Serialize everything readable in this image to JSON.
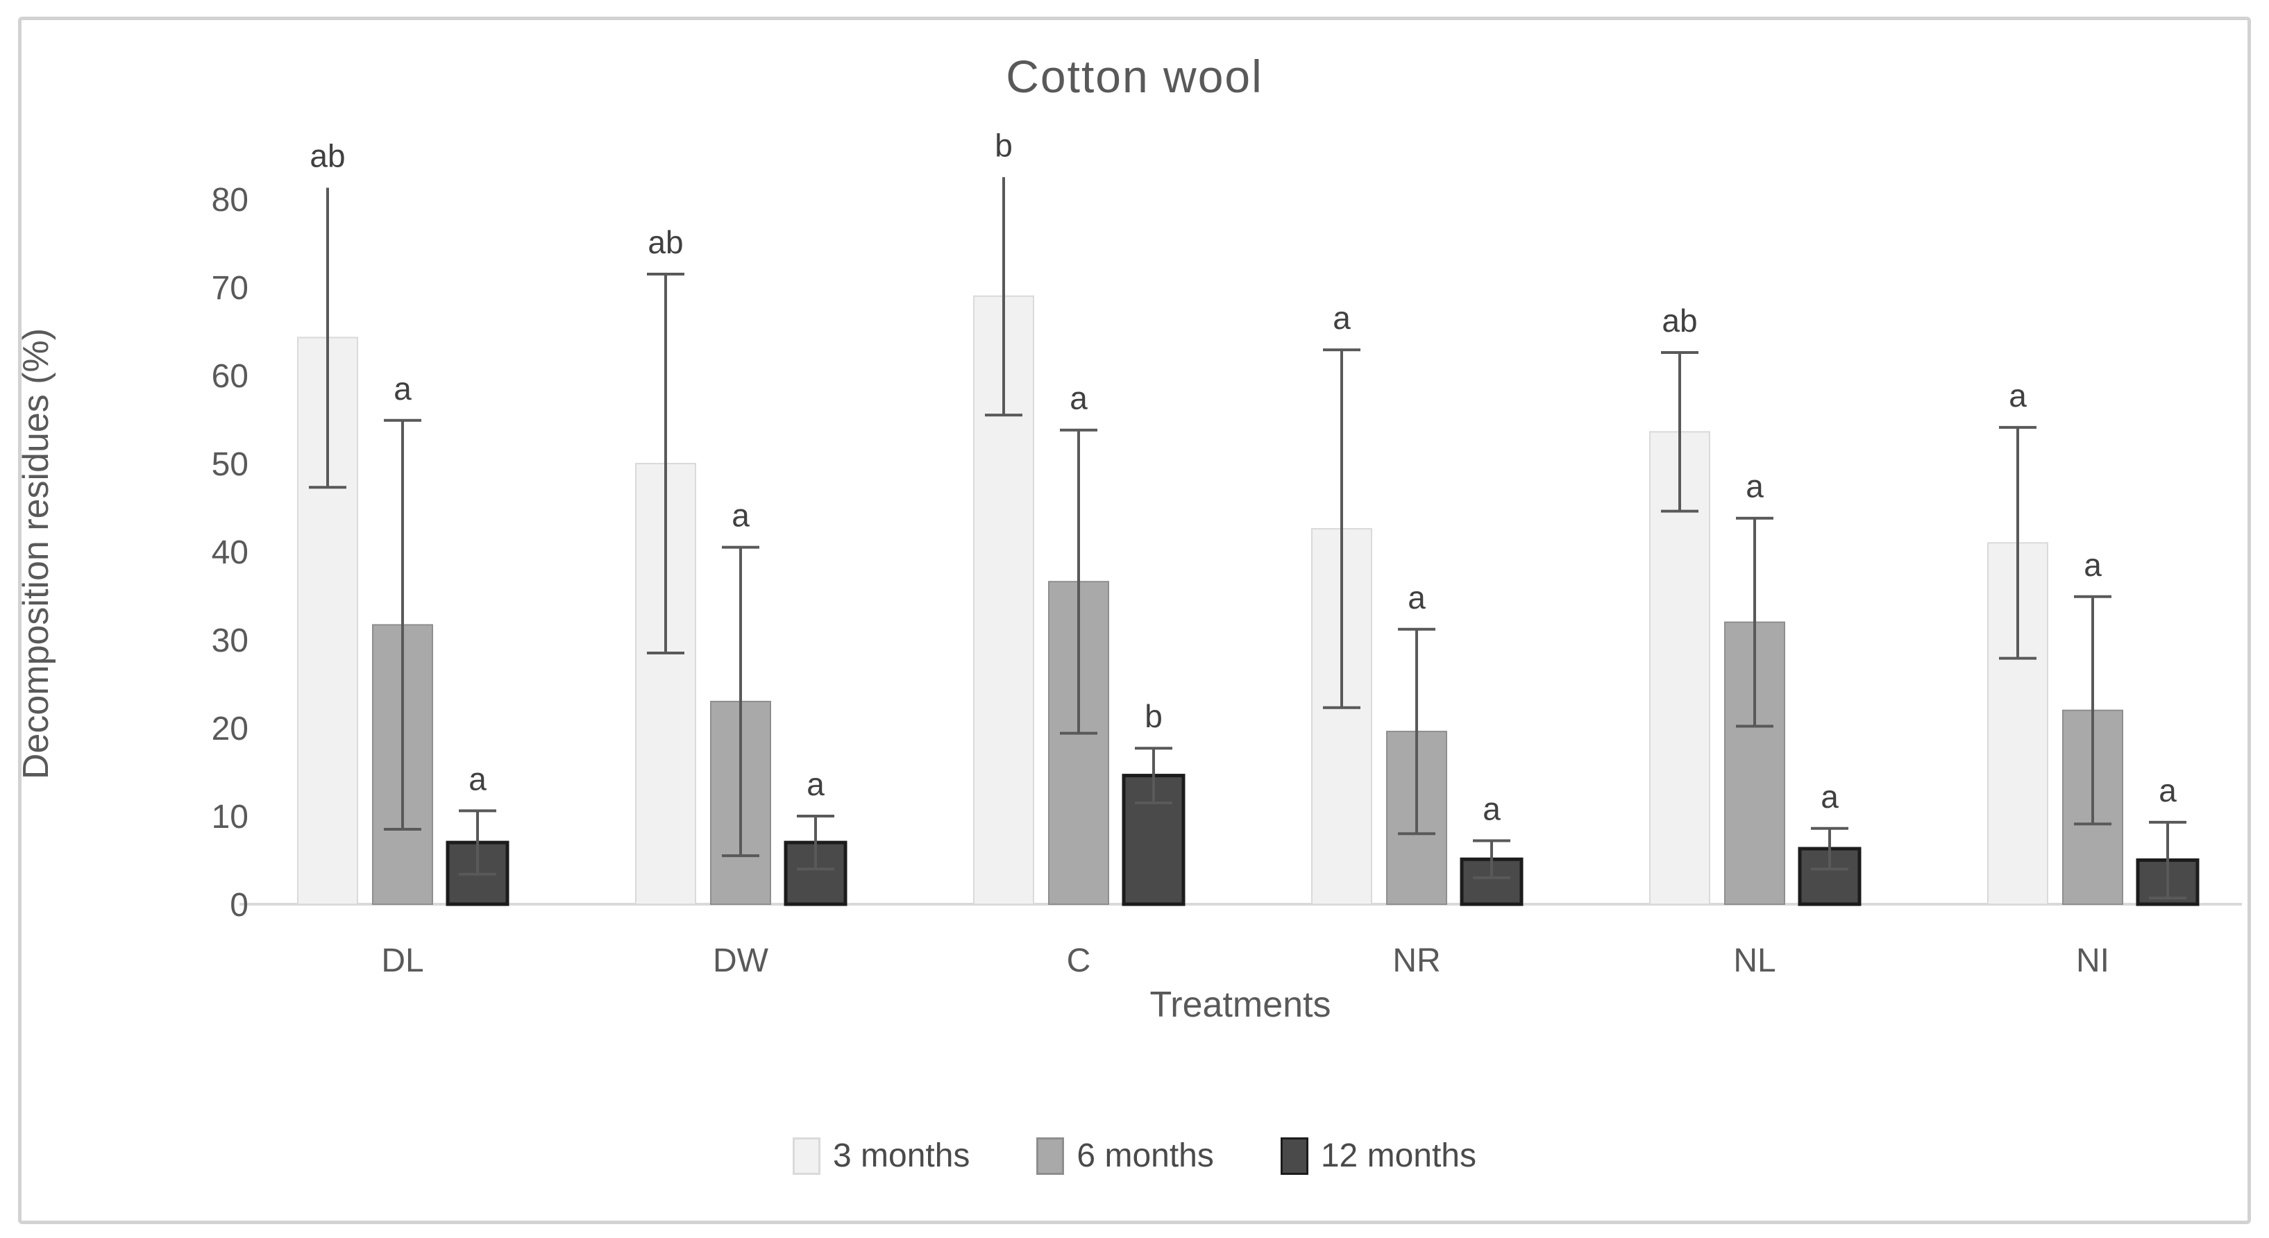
{
  "chart_data": {
    "type": "bar",
    "title": "Cotton wool",
    "xlabel": "Treatments",
    "ylabel": "Decomposition residues (%)",
    "ylim": [
      0,
      80
    ],
    "yticks": [
      0,
      10,
      20,
      30,
      40,
      50,
      60,
      70,
      80
    ],
    "grid": "off",
    "legend_position": "bottom",
    "categories": [
      "DL",
      "DW",
      "C",
      "NR",
      "NL",
      "NI"
    ],
    "series": [
      {
        "name": "3 months",
        "color": "#f1f1f1",
        "border_color": "#dadada",
        "values": [
          64.3,
          50.0,
          69.0,
          42.6,
          53.6,
          41.0
        ],
        "errors": [
          17.0,
          21.5,
          13.5,
          20.3,
          9.0,
          13.1
        ],
        "letters": [
          "ab",
          "ab",
          "b",
          "a",
          "ab",
          "a"
        ]
      },
      {
        "name": "6 months",
        "color": "#a9a9a9",
        "border_color": "#8e8e8e",
        "values": [
          31.7,
          23.0,
          36.6,
          19.6,
          32.0,
          22.0
        ],
        "errors": [
          23.2,
          17.5,
          17.2,
          11.6,
          11.8,
          12.9
        ],
        "letters": [
          "a",
          "a",
          "a",
          "a",
          "a",
          "a"
        ]
      },
      {
        "name": "12 months",
        "color": "#4a4a4a",
        "border_color": "#1c1c1c",
        "values": [
          7.0,
          7.0,
          14.6,
          5.1,
          6.3,
          5.0
        ],
        "errors": [
          3.6,
          3.0,
          3.1,
          2.1,
          2.3,
          4.3
        ],
        "letters": [
          "a",
          "a",
          "b",
          "a",
          "a",
          "a"
        ]
      }
    ],
    "error_bar_color": "#595959",
    "letter_color": "#404040",
    "axis_line_color": "#d9d9d9",
    "text_color": "#595959"
  }
}
